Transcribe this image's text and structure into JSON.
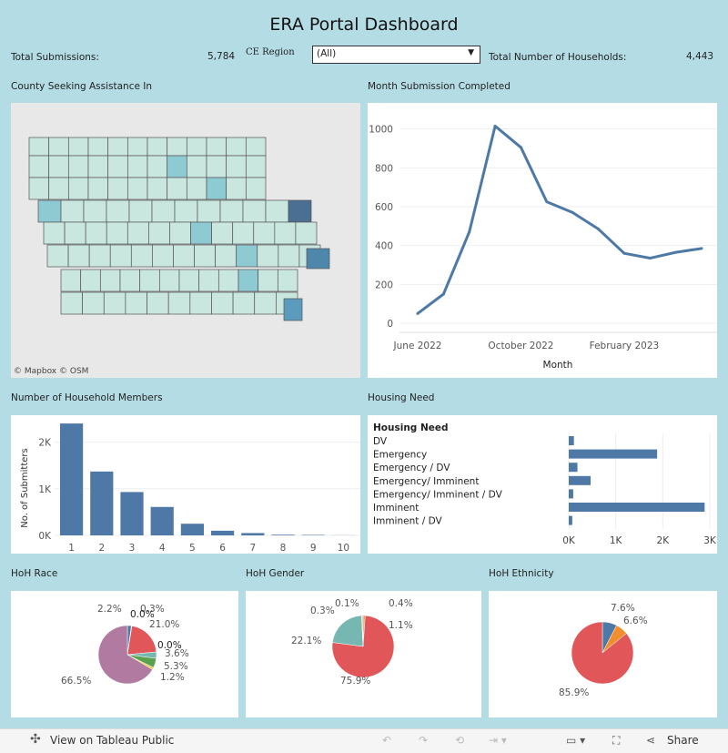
{
  "title": "ERA Portal Dashboard",
  "kpis": {
    "total_submissions_label": "Total Submissions:",
    "total_submissions": "5,784",
    "households_label": "Total Number of Households:",
    "households": "4,443"
  },
  "filter": {
    "label": "CE Region",
    "value": "(All)"
  },
  "map": {
    "title": "County Seeking Assistance In",
    "attribution": [
      "© Mapbox",
      "© OSM"
    ]
  },
  "colors": {
    "bar": "#4e79a7",
    "line": "#4e79a7",
    "map_low": "#c9e6df",
    "map_mid": "#8ecad2",
    "map_high": "#4a6f93"
  },
  "chart_data": [
    {
      "type": "line",
      "title": "Month Submission Completed",
      "xlabel": "Month",
      "x": [
        "June 2022",
        "July 2022",
        "August 2022",
        "September 2022",
        "October 2022",
        "November 2022",
        "December 2022",
        "January 2023",
        "February 2023",
        "March 2023",
        "April 2023",
        "May 2023"
      ],
      "xticks": [
        "June 2022",
        "October 2022",
        "February 2023"
      ],
      "values": [
        50,
        150,
        470,
        1015,
        905,
        625,
        570,
        485,
        360,
        335,
        365,
        385
      ],
      "yticks": [
        0,
        200,
        400,
        600,
        800,
        1000
      ],
      "ylim": [
        0,
        1050
      ]
    },
    {
      "type": "bar",
      "title": "Number of Household Members",
      "ylabel": "No. of Submitters",
      "categories": [
        "1",
        "2",
        "3",
        "4",
        "5",
        "6",
        "7",
        "8",
        "9",
        "10"
      ],
      "values": [
        2400,
        1370,
        930,
        610,
        250,
        100,
        50,
        15,
        10,
        2
      ],
      "yticks": [
        "0K",
        "1K",
        "2K"
      ],
      "ylim": [
        0,
        2500
      ]
    },
    {
      "type": "bar",
      "orientation": "horizontal",
      "title": "Housing Need",
      "header": "Housing Need",
      "categories": [
        "DV",
        "Emergency",
        "Emergency / DV",
        "Emergency/ Imminent",
        "Emergency/ Imminent / DV",
        "Imminent",
        "Imminent / DV"
      ],
      "values": [
        110,
        1880,
        185,
        465,
        95,
        2890,
        75
      ],
      "xticks": [
        "0K",
        "1K",
        "2K",
        "3K"
      ],
      "xlim": [
        0,
        3000
      ]
    },
    {
      "type": "pie",
      "title": "HoH Race",
      "slices": [
        {
          "value": 2.2,
          "label": "2.2%",
          "color": "#4e79a7"
        },
        {
          "value": 0.3,
          "label": "0.3%",
          "color": "#f28e2b"
        },
        {
          "value": 0.0,
          "label": "0.0%",
          "color": "#333"
        },
        {
          "value": 21.0,
          "label": "21.0%",
          "color": "#e15759"
        },
        {
          "value": 0.0,
          "label": "0.0%",
          "color": "#333"
        },
        {
          "value": 3.6,
          "label": "3.6%",
          "color": "#76b7b2"
        },
        {
          "value": 5.3,
          "label": "5.3%",
          "color": "#59a14f"
        },
        {
          "value": 1.2,
          "label": "1.2%",
          "color": "#edc948"
        },
        {
          "value": 66.5,
          "label": "66.5%",
          "color": "#b07aa1"
        }
      ]
    },
    {
      "type": "pie",
      "title": "HoH Gender",
      "slices": [
        {
          "value": 1.1,
          "label": "1.1%",
          "color": "#f28e2b"
        },
        {
          "value": 75.9,
          "label": "75.9%",
          "color": "#e15759"
        },
        {
          "value": 22.1,
          "label": "22.1%",
          "color": "#76b7b2"
        },
        {
          "value": 0.3,
          "label": "0.3%",
          "color": "#59a14f"
        },
        {
          "value": 0.1,
          "label": "0.1%",
          "color": "#edc948"
        },
        {
          "value": 0.4,
          "label": "0.4%",
          "color": "#4e79a7"
        }
      ]
    },
    {
      "type": "pie",
      "title": "HoH Ethnicity",
      "slices": [
        {
          "value": 7.6,
          "label": "7.6%",
          "color": "#4e79a7"
        },
        {
          "value": 6.6,
          "label": "6.6%",
          "color": "#f28e2b"
        },
        {
          "value": 85.9,
          "label": "85.9%",
          "color": "#e15759"
        }
      ]
    }
  ],
  "toolbar": {
    "view_label": "View on Tableau Public",
    "share_label": "Share"
  }
}
